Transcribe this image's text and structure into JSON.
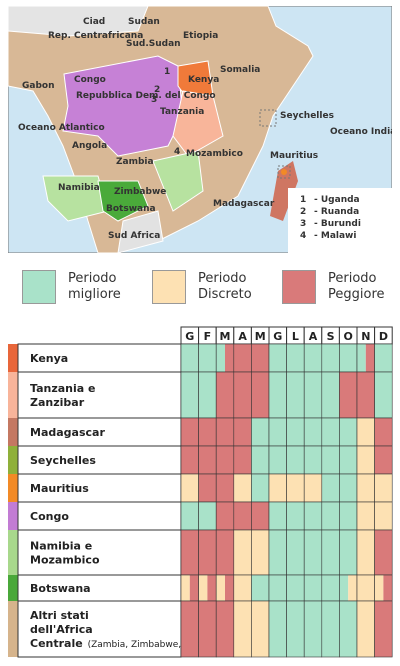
{
  "map": {
    "labels": [
      "Ciad",
      "Sudan",
      "Rep. Centrafricana",
      "Sud.Sudan",
      "Etiopia",
      "Somalia",
      "Gabon",
      "Congo",
      "Repubblica Dem. del Congo",
      "Kenya",
      "Tanzania",
      "Oceano Atlantico",
      "Angola",
      "Zambia",
      "Mozambico",
      "Seychelles",
      "Oceano Indiano",
      "Mauritius",
      "Namibia",
      "Zimbabwe",
      "Botswana",
      "Madagascar",
      "Sud Africa"
    ],
    "markers": [
      "1",
      "2",
      "3",
      "4"
    ],
    "key": [
      {
        "number": "1",
        "name": "- Uganda"
      },
      {
        "number": "2",
        "name": "- Ruanda"
      },
      {
        "number": "3",
        "name": "- Burundi"
      },
      {
        "number": "4",
        "name": "- Malawi"
      }
    ]
  },
  "legend": [
    {
      "label": "Periodo migliore",
      "color": "#a9e2c9"
    },
    {
      "label": "Periodo Discreto",
      "color": "#fde1b3"
    },
    {
      "label": "Periodo Peggiore",
      "color": "#d97a7a"
    }
  ],
  "table": {
    "months": [
      "G",
      "F",
      "M",
      "A",
      "M",
      "G",
      "L",
      "A",
      "S",
      "O",
      "N",
      "D"
    ],
    "rows": [
      {
        "name": "Kenya",
        "color": "#e8663a",
        "ratings": [
          0,
          0,
          [
            0,
            2
          ],
          2,
          2,
          0,
          0,
          0,
          0,
          0,
          [
            0,
            2
          ],
          0
        ]
      },
      {
        "name": "Tanzania e Zanzibar",
        "color": "#f8b49a",
        "ratings": [
          0,
          0,
          2,
          2,
          2,
          0,
          0,
          0,
          0,
          2,
          2,
          0
        ]
      },
      {
        "name": "Madagascar",
        "color": "#c47862",
        "ratings": [
          2,
          2,
          2,
          2,
          0,
          0,
          0,
          0,
          0,
          0,
          1,
          2
        ]
      },
      {
        "name": "Seychelles",
        "color": "#8fb03a",
        "ratings": [
          2,
          2,
          2,
          2,
          0,
          0,
          0,
          0,
          0,
          0,
          1,
          2
        ]
      },
      {
        "name": "Mauritius",
        "color": "#f28a26",
        "ratings": [
          1,
          2,
          2,
          1,
          0,
          1,
          1,
          1,
          0,
          0,
          1,
          1
        ]
      },
      {
        "name": "Congo",
        "color": "#c27cd4",
        "ratings": [
          0,
          0,
          2,
          2,
          2,
          0,
          0,
          0,
          0,
          0,
          1,
          1
        ]
      },
      {
        "name": "Namibia e Mozambico",
        "color": "#a8d88c",
        "ratings": [
          2,
          2,
          2,
          1,
          1,
          0,
          0,
          0,
          0,
          0,
          1,
          2
        ]
      },
      {
        "name": "Botswana",
        "color": "#4aa83a",
        "ratings": [
          [
            1,
            2
          ],
          [
            1,
            2
          ],
          [
            1,
            2
          ],
          1,
          0,
          0,
          0,
          0,
          0,
          [
            0,
            1
          ],
          1,
          [
            1,
            2
          ]
        ]
      },
      {
        "name": "Altri stati dell'Africa Centrale",
        "note": "(Zambia, Zimbabwe, Rwanda, ...)",
        "color": "#d6b48c",
        "ratings": [
          2,
          2,
          2,
          1,
          1,
          0,
          0,
          0,
          0,
          0,
          1,
          2
        ]
      }
    ]
  }
}
